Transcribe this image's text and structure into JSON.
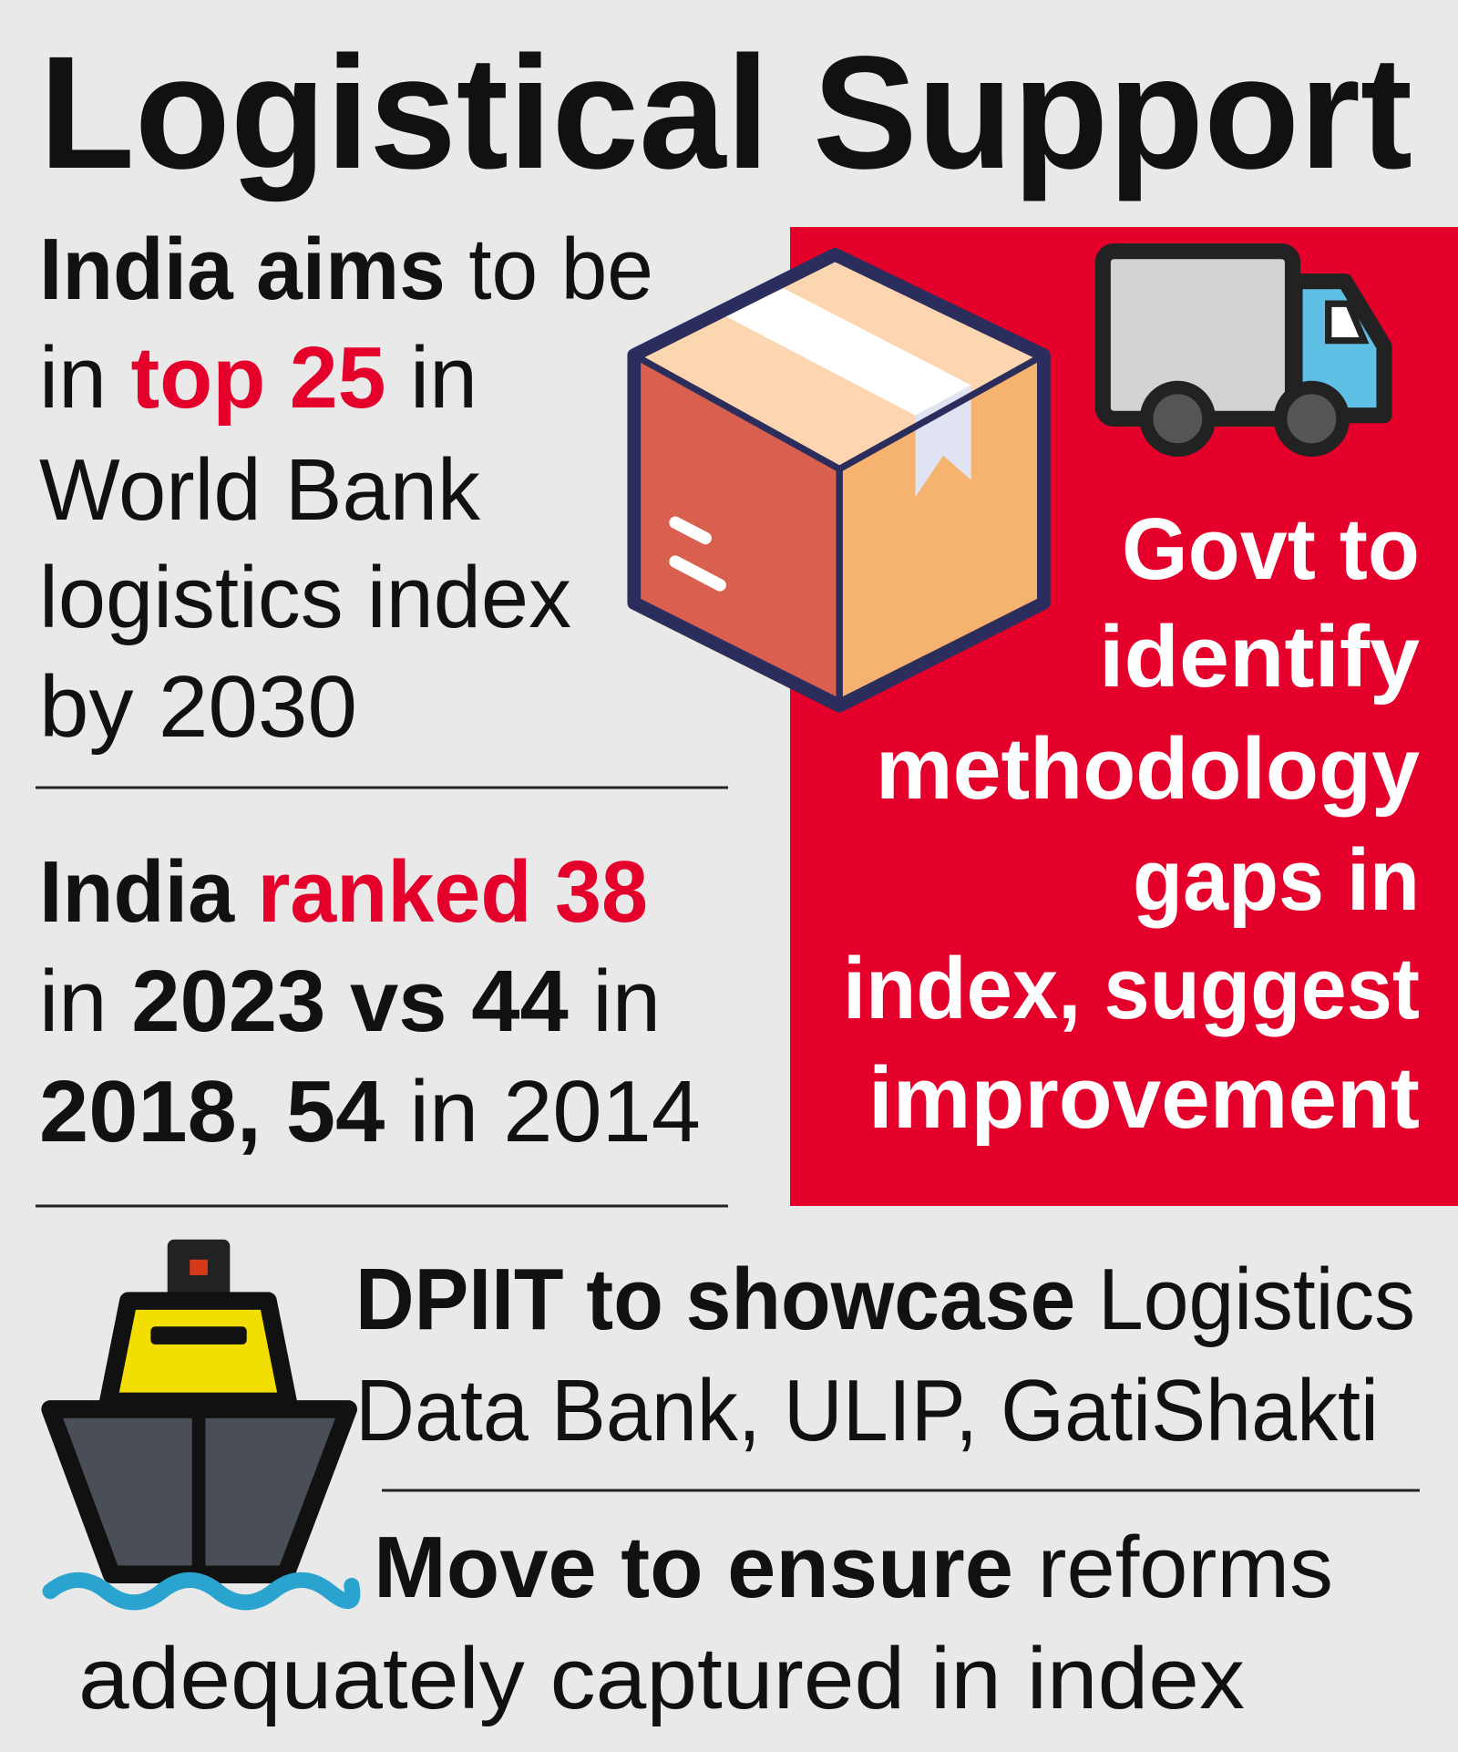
{
  "title": "Logistical Support",
  "highlight_color": "#e4002b",
  "aim_block": {
    "lines": [
      [
        {
          "text": "India aims",
          "style": "bold"
        },
        {
          "text": "to be",
          "style": "regular"
        }
      ],
      [
        {
          "text": "in",
          "style": "regular"
        },
        {
          "text": "top 25",
          "style": "highlight"
        },
        {
          "text": "in",
          "style": "regular"
        }
      ],
      [
        {
          "text": "World Bank",
          "style": "regular"
        }
      ],
      [
        {
          "text": "logistics index",
          "style": "regular"
        }
      ],
      [
        {
          "text": "by 2030",
          "style": "regular"
        }
      ]
    ]
  },
  "rank_block": {
    "lines": [
      [
        {
          "text": "India",
          "style": "bold"
        },
        {
          "text": "ranked 38",
          "style": "highlight"
        }
      ],
      [
        {
          "text": "in",
          "style": "regular"
        },
        {
          "text": "2023 vs 44",
          "style": "bold"
        },
        {
          "text": "in",
          "style": "regular"
        }
      ],
      [
        {
          "text": "2018, 54",
          "style": "bold"
        },
        {
          "text": "in 2014",
          "style": "regular"
        }
      ]
    ]
  },
  "govt_block": {
    "lines": [
      [
        {
          "text": "Govt to",
          "style": "bold"
        }
      ],
      [
        {
          "text": "identify",
          "style": "bold"
        }
      ],
      [
        {
          "text": "methodology",
          "style": "bold"
        }
      ],
      [
        {
          "text": "gaps in",
          "style": "bold"
        }
      ],
      [
        {
          "text": "index, suggest",
          "style": "bold"
        }
      ],
      [
        {
          "text": "improvement",
          "style": "bold"
        }
      ]
    ]
  },
  "dpiit_block": {
    "lines": [
      [
        {
          "text": "DPIIT to showcase",
          "style": "bold"
        },
        {
          "text": "Logistics",
          "style": "regular"
        }
      ],
      [
        {
          "text": "Data Bank, ULIP, GatiShakti",
          "style": "regular"
        }
      ]
    ]
  },
  "reform_block": {
    "lines": [
      [
        {
          "text": "Move to ensure",
          "style": "bold"
        },
        {
          "text": "reforms",
          "style": "regular"
        }
      ],
      [
        {
          "text": "adequately captured in index",
          "style": "regular"
        }
      ]
    ]
  }
}
